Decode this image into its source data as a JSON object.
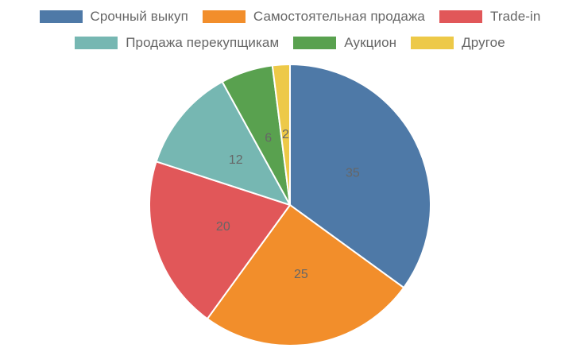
{
  "chart_data": {
    "type": "pie",
    "categories": [
      "Срочный выкуп",
      "Самостоятельная продажа",
      "Trade-in",
      "Продажа перекупщикам",
      "Аукцион",
      "Другое"
    ],
    "values": [
      35,
      25,
      20,
      12,
      6,
      2
    ],
    "colors": [
      "#4e79a7",
      "#f28e2b",
      "#e15759",
      "#76b7b2",
      "#59a14f",
      "#edc948"
    ],
    "data_labels": [
      "35",
      "25",
      "20",
      "12",
      "6",
      "2"
    ],
    "legend_placement": "top"
  }
}
